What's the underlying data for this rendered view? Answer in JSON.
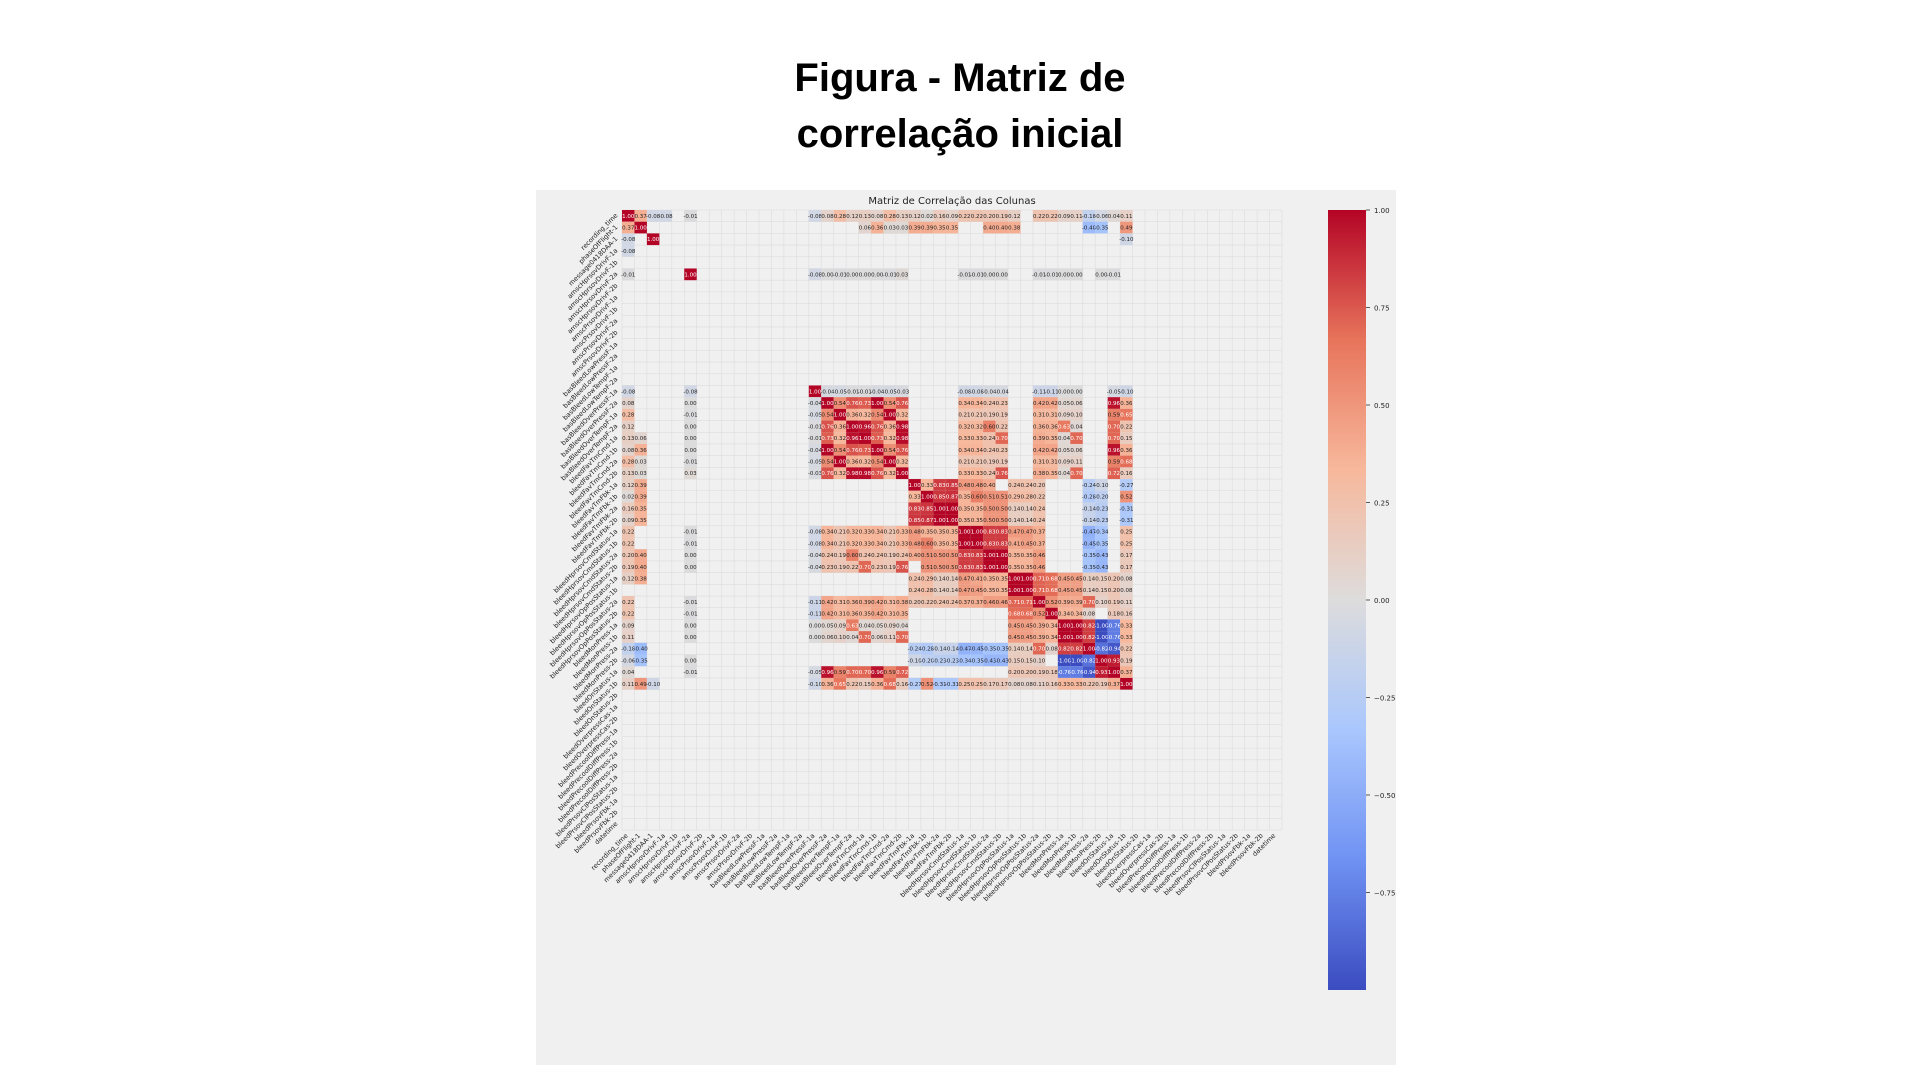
{
  "page": {
    "title_line1": "Figura - Matriz de",
    "title_line2": "correlação inicial"
  },
  "chart_data": {
    "type": "heatmap",
    "title": "Matriz de Correlação das Colunas",
    "labels": [
      "recording_time",
      "phaseOfFlight-1",
      "message0418DAA-1",
      "amscHprsovDrivF-1a",
      "amscHprsovDrivF-1b",
      "amscHprsovDrivF-2a",
      "amscHprsovDrivF-2b",
      "amscPrsovDrivF-1a",
      "amscPrsovDrivF-1b",
      "amscPrsovDrivF-2a",
      "amscPrsovDrivF-2b",
      "basBleedLowPressF-1a",
      "basBleedLowPressF-2a",
      "basBleedLowTempF-1a",
      "basBleedLowTempF-2a",
      "basBleedOverPressF-1a",
      "basBleedOverPressF-2a",
      "basBleedOverTempF-1a",
      "basBleedOverTempF-2a",
      "bleedFavTmCmd-1a",
      "bleedFavTmCmd-1b",
      "bleedFavTmCmd-2a",
      "bleedFavTmCmd-2b",
      "bleedFavTmFbk-1a",
      "bleedFavTmFbk-1b",
      "bleedFavTmFbk-2a",
      "bleedFavTmFbk-2b",
      "bleedHprsovCmdStatus-1a",
      "bleedHprsovCmdStatus-1b",
      "bleedHprsovCmdStatus-2a",
      "bleedHprsovCmdStatus-2b",
      "bleedHprsovOpPosStatus-1a",
      "bleedHprsovOpPosStatus-1b",
      "bleedHprsovOpPosStatus-2a",
      "bleedHprsovOpPosStatus-2b",
      "bleedMonPress-1a",
      "bleedMonPress-1b",
      "bleedMonPress-2a",
      "bleedMonPress-2b",
      "bleedOnStatus-1a",
      "bleedOnStatus-1b",
      "bleedOnStatus-2b",
      "bleedOverpressCas-1a",
      "bleedOverpressCas-2b",
      "bleedPrecoolDiffPress-1a",
      "bleedPrecoolDiffPress-1b",
      "bleedPrecoolDiffPress-2a",
      "bleedPrecoolDiffPress-2b",
      "bleedPrsovClPosStatus-1a",
      "bleedPrsovClPosStatus-2b",
      "bleedPrsovFbk-1a",
      "bleedPrsovFbk-2b",
      "datetime"
    ],
    "colorbar": {
      "min": -1.0,
      "max": 1.0,
      "ticks": [
        1.0,
        0.75,
        0.5,
        0.25,
        0.0,
        -0.25,
        -0.5,
        -0.75
      ],
      "tick_labels": [
        "1.00",
        "0.75",
        "0.50",
        "0.25",
        "0.00",
        "−0.25",
        "−0.50",
        "−0.75"
      ],
      "colors": [
        "#3b4cc0",
        "#6f92f3",
        "#aac7fd",
        "#dddcdc",
        "#f7b89c",
        "#e7745b",
        "#b40426"
      ]
    },
    "cells": [
      [
        0,
        0,
        1.0
      ],
      [
        0,
        1,
        0.37
      ],
      [
        0,
        3,
        -0.08
      ],
      [
        0,
        5,
        -0.01
      ],
      [
        0,
        15,
        -0.08
      ],
      [
        0,
        16,
        0.08
      ],
      [
        0,
        17,
        0.28
      ],
      [
        0,
        18,
        0.12
      ],
      [
        0,
        19,
        0.13
      ],
      [
        0,
        20,
        0.08
      ],
      [
        0,
        21,
        0.28
      ],
      [
        0,
        22,
        0.13
      ],
      [
        0,
        23,
        0.12
      ],
      [
        0,
        24,
        0.02
      ],
      [
        0,
        25,
        0.16
      ],
      [
        0,
        26,
        0.09
      ],
      [
        0,
        27,
        0.22
      ],
      [
        0,
        28,
        0.22
      ],
      [
        0,
        29,
        0.2
      ],
      [
        0,
        30,
        0.19
      ],
      [
        0,
        31,
        0.12
      ],
      [
        0,
        33,
        0.22
      ],
      [
        0,
        34,
        0.22
      ],
      [
        0,
        35,
        0.09
      ],
      [
        0,
        36,
        0.11
      ],
      [
        0,
        37,
        -0.18
      ],
      [
        0,
        38,
        -0.06
      ],
      [
        0,
        39,
        0.04
      ],
      [
        0,
        40,
        0.11
      ],
      [
        1,
        0,
        0.37
      ],
      [
        1,
        1,
        1.0
      ],
      [
        1,
        19,
        0.06
      ],
      [
        1,
        20,
        0.36
      ],
      [
        1,
        21,
        0.03
      ],
      [
        1,
        22,
        0.03
      ],
      [
        1,
        23,
        0.39
      ],
      [
        1,
        24,
        0.39
      ],
      [
        1,
        25,
        0.35
      ],
      [
        1,
        26,
        0.35
      ],
      [
        1,
        29,
        0.4
      ],
      [
        1,
        30,
        0.4
      ],
      [
        1,
        31,
        0.38
      ],
      [
        1,
        37,
        -0.4
      ],
      [
        1,
        38,
        -0.35
      ],
      [
        1,
        40,
        0.49
      ],
      [
        2,
        2,
        1.0
      ],
      [
        2,
        0,
        -0.08
      ],
      [
        2,
        40,
        -0.1
      ],
      [
        5,
        5,
        1.0
      ],
      [
        5,
        0,
        -0.01
      ],
      [
        5,
        15,
        -0.08
      ],
      [
        5,
        16,
        -0.0
      ],
      [
        5,
        17,
        -0.01
      ],
      [
        5,
        18,
        0.0
      ],
      [
        5,
        19,
        -0.0
      ],
      [
        5,
        20,
        -0.0
      ],
      [
        5,
        21,
        -0.01
      ],
      [
        5,
        22,
        0.03
      ],
      [
        5,
        27,
        -0.01
      ],
      [
        5,
        28,
        -0.01
      ],
      [
        5,
        29,
        -0.0
      ],
      [
        5,
        30,
        0.0
      ],
      [
        5,
        33,
        -0.01
      ],
      [
        5,
        34,
        -0.01
      ],
      [
        5,
        35,
        0.0
      ],
      [
        5,
        36,
        0.0
      ],
      [
        5,
        38,
        -0.0
      ],
      [
        5,
        39,
        -0.01
      ],
      [
        15,
        15,
        1.0
      ],
      [
        15,
        16,
        -0.04
      ],
      [
        15,
        17,
        -0.05
      ],
      [
        15,
        18,
        -0.01
      ],
      [
        15,
        19,
        -0.01
      ],
      [
        15,
        20,
        -0.04
      ],
      [
        15,
        21,
        -0.05
      ],
      [
        15,
        22,
        -0.03
      ],
      [
        15,
        27,
        -0.08
      ],
      [
        15,
        28,
        -0.08
      ],
      [
        15,
        29,
        -0.04
      ],
      [
        15,
        30,
        -0.04
      ],
      [
        15,
        33,
        -0.11
      ],
      [
        15,
        34,
        -0.11
      ],
      [
        15,
        35,
        0.0
      ],
      [
        15,
        36,
        0.0
      ],
      [
        15,
        39,
        -0.05
      ],
      [
        15,
        40,
        -0.1
      ],
      [
        16,
        16,
        1.0
      ],
      [
        16,
        17,
        0.54
      ],
      [
        16,
        18,
        0.76
      ],
      [
        16,
        19,
        0.73
      ],
      [
        16,
        20,
        1.0
      ],
      [
        16,
        21,
        0.54
      ],
      [
        16,
        22,
        0.76
      ],
      [
        16,
        27,
        0.34
      ],
      [
        16,
        28,
        0.34
      ],
      [
        16,
        29,
        0.24
      ],
      [
        16,
        30,
        0.23
      ],
      [
        16,
        33,
        0.42
      ],
      [
        16,
        34,
        0.42
      ],
      [
        16,
        35,
        0.05
      ],
      [
        16,
        36,
        0.06
      ],
      [
        16,
        39,
        0.96
      ],
      [
        16,
        40,
        0.36
      ],
      [
        17,
        17,
        1.0
      ],
      [
        17,
        18,
        0.36
      ],
      [
        17,
        19,
        0.32
      ],
      [
        17,
        20,
        0.54
      ],
      [
        17,
        21,
        1.0
      ],
      [
        17,
        22,
        0.32
      ],
      [
        17,
        27,
        0.21
      ],
      [
        17,
        28,
        0.21
      ],
      [
        17,
        29,
        0.19
      ],
      [
        17,
        30,
        0.19
      ],
      [
        17,
        33,
        0.31
      ],
      [
        17,
        34,
        0.31
      ],
      [
        17,
        35,
        0.09
      ],
      [
        17,
        36,
        0.1
      ],
      [
        17,
        39,
        0.59
      ],
      [
        17,
        40,
        0.65
      ],
      [
        18,
        18,
        1.0
      ],
      [
        18,
        19,
        0.96
      ],
      [
        18,
        20,
        0.76
      ],
      [
        18,
        21,
        0.36
      ],
      [
        18,
        22,
        0.98
      ],
      [
        18,
        27,
        0.32
      ],
      [
        18,
        28,
        0.32
      ],
      [
        18,
        29,
        0.6
      ],
      [
        18,
        30,
        0.22
      ],
      [
        18,
        33,
        0.36
      ],
      [
        18,
        34,
        0.36
      ],
      [
        18,
        35,
        0.63
      ],
      [
        18,
        36,
        0.04
      ],
      [
        18,
        39,
        0.7
      ],
      [
        18,
        40,
        0.22
      ],
      [
        19,
        19,
        1.0
      ],
      [
        19,
        20,
        0.73
      ],
      [
        19,
        21,
        0.32
      ],
      [
        19,
        22,
        0.98
      ],
      [
        19,
        27,
        0.33
      ],
      [
        19,
        28,
        0.33
      ],
      [
        19,
        29,
        0.24
      ],
      [
        19,
        30,
        0.7
      ],
      [
        19,
        33,
        0.39
      ],
      [
        19,
        34,
        0.35
      ],
      [
        19,
        35,
        0.04
      ],
      [
        19,
        36,
        0.7
      ],
      [
        19,
        39,
        0.7
      ],
      [
        19,
        40,
        0.15
      ],
      [
        20,
        20,
        1.0
      ],
      [
        20,
        21,
        0.54
      ],
      [
        20,
        22,
        0.76
      ],
      [
        20,
        27,
        0.34
      ],
      [
        20,
        28,
        0.34
      ],
      [
        20,
        29,
        0.24
      ],
      [
        20,
        30,
        0.23
      ],
      [
        20,
        33,
        0.42
      ],
      [
        20,
        34,
        0.42
      ],
      [
        20,
        35,
        0.05
      ],
      [
        20,
        36,
        0.06
      ],
      [
        20,
        39,
        0.96
      ],
      [
        20,
        40,
        0.36
      ],
      [
        21,
        21,
        1.0
      ],
      [
        21,
        22,
        0.32
      ],
      [
        21,
        27,
        0.21
      ],
      [
        21,
        28,
        0.21
      ],
      [
        21,
        29,
        0.19
      ],
      [
        21,
        30,
        0.19
      ],
      [
        21,
        33,
        0.31
      ],
      [
        21,
        34,
        0.31
      ],
      [
        21,
        35,
        0.09
      ],
      [
        21,
        36,
        0.11
      ],
      [
        21,
        39,
        0.59
      ],
      [
        21,
        40,
        0.68
      ],
      [
        22,
        22,
        1.0
      ],
      [
        22,
        27,
        0.33
      ],
      [
        22,
        28,
        0.33
      ],
      [
        22,
        29,
        0.24
      ],
      [
        22,
        30,
        0.76
      ],
      [
        22,
        33,
        0.38
      ],
      [
        22,
        34,
        0.35
      ],
      [
        22,
        35,
        0.04
      ],
      [
        22,
        36,
        0.7
      ],
      [
        22,
        39,
        0.72
      ],
      [
        22,
        40,
        0.16
      ],
      [
        23,
        23,
        1.0
      ],
      [
        23,
        24,
        0.33
      ],
      [
        23,
        25,
        0.83
      ],
      [
        23,
        26,
        0.85
      ],
      [
        23,
        27,
        0.48
      ],
      [
        23,
        28,
        0.48
      ],
      [
        23,
        29,
        0.4
      ],
      [
        23,
        31,
        0.24
      ],
      [
        23,
        32,
        0.24
      ],
      [
        23,
        33,
        0.2
      ],
      [
        23,
        37,
        -0.24
      ],
      [
        23,
        38,
        -0.1
      ],
      [
        23,
        40,
        -0.27
      ],
      [
        24,
        24,
        1.0
      ],
      [
        24,
        25,
        0.85
      ],
      [
        24,
        26,
        0.87
      ],
      [
        24,
        27,
        0.35
      ],
      [
        24,
        28,
        0.6
      ],
      [
        24,
        29,
        0.51
      ],
      [
        24,
        30,
        0.51
      ],
      [
        24,
        31,
        0.29
      ],
      [
        24,
        32,
        0.28
      ],
      [
        24,
        33,
        0.22
      ],
      [
        24,
        37,
        -0.28
      ],
      [
        24,
        38,
        -0.2
      ],
      [
        24,
        40,
        0.52
      ],
      [
        25,
        25,
        1.0
      ],
      [
        25,
        26,
        1.0
      ],
      [
        25,
        27,
        0.35
      ],
      [
        25,
        28,
        0.35
      ],
      [
        25,
        29,
        0.5
      ],
      [
        25,
        30,
        0.5
      ],
      [
        25,
        31,
        0.14
      ],
      [
        25,
        32,
        0.14
      ],
      [
        25,
        33,
        0.24
      ],
      [
        25,
        37,
        -0.14
      ],
      [
        25,
        38,
        -0.23
      ],
      [
        25,
        40,
        -0.31
      ],
      [
        26,
        26,
        1.0
      ],
      [
        26,
        27,
        0.35
      ],
      [
        26,
        28,
        0.35
      ],
      [
        26,
        29,
        0.5
      ],
      [
        26,
        30,
        0.5
      ],
      [
        26,
        31,
        0.14
      ],
      [
        26,
        32,
        0.14
      ],
      [
        26,
        33,
        0.24
      ],
      [
        26,
        37,
        -0.14
      ],
      [
        26,
        38,
        -0.23
      ],
      [
        26,
        40,
        -0.31
      ],
      [
        27,
        27,
        1.0
      ],
      [
        27,
        28,
        1.0
      ],
      [
        27,
        29,
        0.83
      ],
      [
        27,
        30,
        0.83
      ],
      [
        27,
        31,
        0.47
      ],
      [
        27,
        32,
        0.47
      ],
      [
        27,
        33,
        0.37
      ],
      [
        27,
        37,
        -0.47
      ],
      [
        27,
        38,
        -0.34
      ],
      [
        27,
        40,
        0.25
      ],
      [
        28,
        28,
        1.0
      ],
      [
        28,
        29,
        0.83
      ],
      [
        28,
        30,
        0.83
      ],
      [
        28,
        31,
        0.41
      ],
      [
        28,
        32,
        0.45
      ],
      [
        28,
        33,
        0.37
      ],
      [
        28,
        37,
        -0.45
      ],
      [
        28,
        38,
        -0.35
      ],
      [
        28,
        40,
        0.25
      ],
      [
        29,
        29,
        1.0
      ],
      [
        29,
        30,
        1.0
      ],
      [
        29,
        31,
        0.35
      ],
      [
        29,
        32,
        0.35
      ],
      [
        29,
        33,
        0.46
      ],
      [
        29,
        37,
        -0.35
      ],
      [
        29,
        38,
        -0.43
      ],
      [
        29,
        40,
        0.17
      ],
      [
        30,
        30,
        1.0
      ],
      [
        30,
        31,
        0.35
      ],
      [
        30,
        32,
        0.35
      ],
      [
        30,
        33,
        0.46
      ],
      [
        30,
        37,
        -0.35
      ],
      [
        30,
        38,
        -0.43
      ],
      [
        30,
        40,
        0.17
      ],
      [
        31,
        31,
        1.0
      ],
      [
        31,
        32,
        1.0
      ],
      [
        31,
        33,
        0.71
      ],
      [
        31,
        34,
        0.68
      ],
      [
        31,
        35,
        0.45
      ],
      [
        31,
        36,
        0.45
      ],
      [
        31,
        37,
        0.14
      ],
      [
        31,
        38,
        0.15
      ],
      [
        31,
        39,
        0.2
      ],
      [
        31,
        40,
        0.08
      ],
      [
        32,
        32,
        1.0
      ],
      [
        32,
        33,
        0.71
      ],
      [
        32,
        34,
        0.68
      ],
      [
        32,
        35,
        0.45
      ],
      [
        32,
        36,
        0.45
      ],
      [
        32,
        37,
        0.14
      ],
      [
        32,
        38,
        0.15
      ],
      [
        32,
        39,
        0.2
      ],
      [
        32,
        40,
        0.08
      ],
      [
        33,
        33,
        1.0
      ],
      [
        33,
        34,
        0.52
      ],
      [
        33,
        35,
        0.39
      ],
      [
        33,
        36,
        0.39
      ],
      [
        33,
        37,
        0.7
      ],
      [
        33,
        38,
        0.1
      ],
      [
        33,
        39,
        0.19
      ],
      [
        33,
        40,
        0.11
      ],
      [
        34,
        34,
        1.0
      ],
      [
        34,
        35,
        0.34
      ],
      [
        34,
        36,
        0.34
      ],
      [
        34,
        37,
        0.08
      ],
      [
        34,
        39,
        0.18
      ],
      [
        34,
        40,
        0.16
      ],
      [
        35,
        35,
        1.0
      ],
      [
        35,
        36,
        1.0
      ],
      [
        35,
        37,
        0.82
      ],
      [
        35,
        38,
        -1.0
      ],
      [
        35,
        39,
        -0.76
      ],
      [
        35,
        40,
        0.33
      ],
      [
        36,
        36,
        1.0
      ],
      [
        36,
        37,
        0.82
      ],
      [
        36,
        38,
        -1.0
      ],
      [
        36,
        39,
        -0.76
      ],
      [
        36,
        40,
        0.33
      ],
      [
        37,
        37,
        1.0
      ],
      [
        37,
        38,
        -0.82
      ],
      [
        37,
        39,
        -0.94
      ],
      [
        37,
        40,
        0.22
      ],
      [
        38,
        38,
        1.0
      ],
      [
        38,
        39,
        0.93
      ],
      [
        38,
        40,
        0.19
      ],
      [
        39,
        39,
        1.0
      ],
      [
        39,
        40,
        0.37
      ],
      [
        40,
        40,
        1.0
      ]
    ]
  }
}
